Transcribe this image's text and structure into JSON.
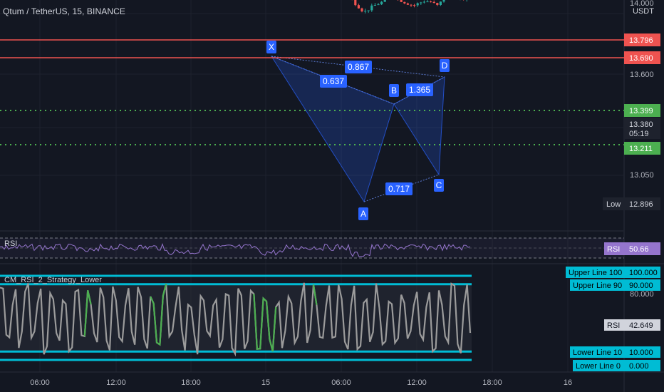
{
  "chart_title": "Qtum / TetherUS, 15, BINANCE",
  "currency": "USDT",
  "colors": {
    "background": "#131722",
    "up": "#26a69a",
    "down": "#ef5350",
    "pattern": "#2962ff",
    "rsi": "#9575cd",
    "osc": "#9b9b9b",
    "osc_highlight": "#4caf50",
    "cyan": "#00bcd4",
    "level_green": "#4caf50"
  },
  "price_axis": {
    "top_tick": "14.000",
    "ticks": [
      "13.600",
      "13.050"
    ]
  },
  "price_labels": {
    "r1": "13.796",
    "r2": "13.690",
    "g1": "13.399",
    "last": "13.380",
    "countdown": "05:19",
    "g2": "13.211",
    "low_label": "Low",
    "low_value": "12.896"
  },
  "pattern": {
    "points": [
      "X",
      "A",
      "B",
      "C",
      "D"
    ],
    "ratios": [
      "0.867",
      "0.637",
      "1.365",
      "0.717"
    ]
  },
  "rsi_pane": {
    "label": "RSI",
    "badge_label": "RSI",
    "badge_value": "50.66"
  },
  "lower_pane": {
    "title": "CM_RSI_2_Strategy_Lower",
    "axis_tick": "80.000",
    "upper_line_100": "Upper Line 100",
    "upper_line_100_value": "100.000",
    "upper_line_90": "Upper Line 90",
    "upper_line_90_value": "90.000",
    "rsi_badge_label": "RSI",
    "rsi_badge_value": "42.649",
    "lower_line_10": "Lower Line 10",
    "lower_line_10_value": "10.000",
    "lower_line_0": "Lower Line 0",
    "lower_line_0_value": "0.000"
  },
  "time_axis": [
    "06:00",
    "12:00",
    "18:00",
    "15",
    "06:00",
    "12:00",
    "18:00",
    "16"
  ],
  "chart_data": {
    "type": "candlestick",
    "title": "Qtum / TetherUS, 15, BINANCE",
    "yaxis_unit": "USDT",
    "horizontal_levels": [
      13.796,
      13.69,
      13.399,
      13.211
    ],
    "last_price": 13.38,
    "low": 12.896,
    "harmonic_pattern": {
      "X": 13.75,
      "A": 12.92,
      "B": 13.45,
      "C": 13.08,
      "D": 13.64,
      "ratios": {
        "XB": 0.637,
        "XD": 0.867,
        "BD": 1.365,
        "AC": 0.717
      }
    },
    "rsi_last": 50.66,
    "strategy_rsi_last": 42.649,
    "strategy_levels": [
      100,
      90,
      10,
      0
    ]
  }
}
